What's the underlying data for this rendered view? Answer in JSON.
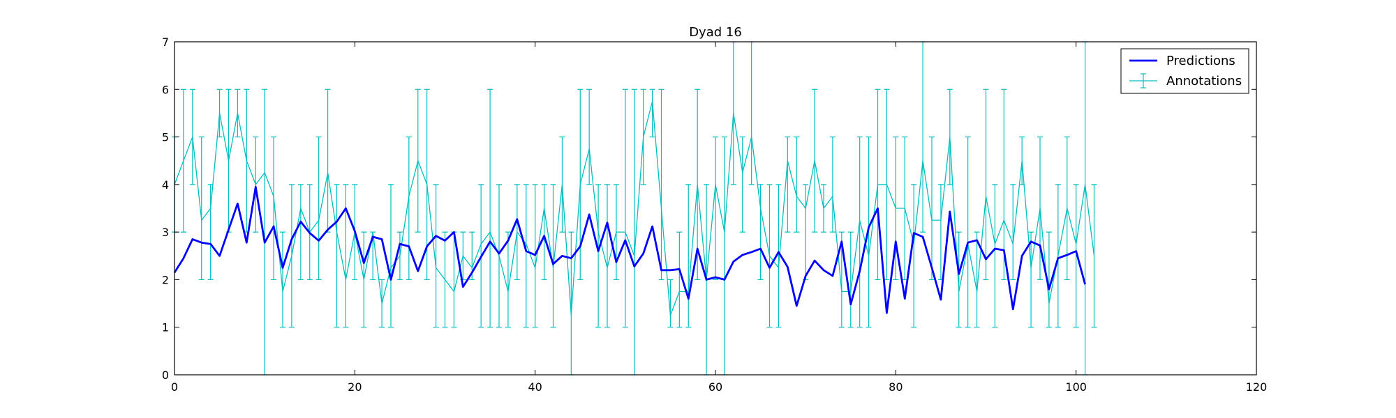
{
  "chart_data": {
    "type": "line",
    "title": "Dyad 16",
    "xlabel": "",
    "ylabel": "",
    "xlim": [
      0,
      120
    ],
    "ylim": [
      0,
      7
    ],
    "xticks": [
      0,
      20,
      40,
      60,
      80,
      100,
      120
    ],
    "yticks": [
      0,
      1,
      2,
      3,
      4,
      5,
      6,
      7
    ],
    "grid": false,
    "legend_position": "top-right",
    "series": [
      {
        "name": "Predictions",
        "color": "#0000ff",
        "style": "line",
        "x": [
          0,
          1,
          2,
          3,
          4,
          5,
          6,
          7,
          8,
          9,
          10,
          11,
          12,
          13,
          14,
          15,
          16,
          17,
          18,
          19,
          20,
          21,
          22,
          23,
          24,
          25,
          26,
          27,
          28,
          29,
          30,
          31,
          32,
          33,
          34,
          35,
          36,
          37,
          38,
          39,
          40,
          41,
          42,
          43,
          44,
          45,
          46,
          47,
          48,
          49,
          50,
          51,
          52,
          53,
          54,
          55,
          56,
          57,
          58,
          59,
          60,
          61,
          62,
          63,
          64,
          65,
          66,
          67,
          68,
          69,
          70,
          71,
          72,
          73,
          74,
          75,
          76,
          77,
          78,
          79,
          80,
          81,
          82,
          83,
          84,
          85,
          86,
          87,
          88,
          89,
          90,
          91,
          92,
          93,
          94,
          95,
          96,
          97,
          98,
          99,
          100,
          101
        ],
        "y": [
          2.15,
          2.45,
          2.85,
          2.78,
          2.75,
          2.5,
          3.05,
          3.6,
          2.78,
          3.95,
          2.78,
          3.12,
          2.25,
          2.85,
          3.22,
          2.98,
          2.82,
          3.05,
          3.22,
          3.5,
          3.02,
          2.35,
          2.9,
          2.85,
          2.0,
          2.75,
          2.7,
          2.18,
          2.7,
          2.92,
          2.82,
          3.0,
          1.85,
          2.15,
          2.48,
          2.8,
          2.55,
          2.82,
          3.27,
          2.6,
          2.52,
          2.92,
          2.33,
          2.5,
          2.45,
          2.7,
          3.37,
          2.6,
          3.2,
          2.37,
          2.83,
          2.28,
          2.55,
          3.12,
          2.2,
          2.2,
          2.22,
          1.6,
          2.65,
          2.0,
          2.05,
          2.0,
          2.38,
          2.52,
          2.58,
          2.65,
          2.25,
          2.58,
          2.27,
          1.45,
          2.08,
          2.4,
          2.2,
          2.08,
          2.8,
          1.48,
          2.18,
          3.1,
          3.5,
          1.3,
          2.8,
          1.6,
          2.98,
          2.9,
          2.25,
          1.58,
          3.43,
          2.12,
          2.78,
          2.83,
          2.43,
          2.65,
          2.62,
          1.38,
          2.5,
          2.8,
          2.72,
          1.8,
          2.45,
          2.52,
          2.6,
          1.9
        ]
      },
      {
        "name": "Annotations",
        "color": "#00bfbf",
        "style": "errorbar",
        "x": [
          0,
          1,
          2,
          3,
          4,
          5,
          6,
          7,
          8,
          9,
          10,
          11,
          12,
          13,
          14,
          15,
          16,
          17,
          18,
          19,
          20,
          21,
          22,
          23,
          24,
          25,
          26,
          27,
          28,
          29,
          30,
          31,
          32,
          33,
          34,
          35,
          36,
          37,
          38,
          39,
          40,
          41,
          42,
          43,
          44,
          45,
          46,
          47,
          48,
          49,
          50,
          51,
          52,
          53,
          54,
          55,
          56,
          57,
          58,
          59,
          60,
          61,
          62,
          63,
          64,
          65,
          66,
          67,
          68,
          69,
          70,
          71,
          72,
          73,
          74,
          75,
          76,
          77,
          78,
          79,
          80,
          81,
          82,
          83,
          84,
          85,
          86,
          87,
          88,
          89,
          90,
          91,
          92,
          93,
          94,
          95,
          96,
          97,
          98,
          99,
          100,
          101,
          102
        ],
        "y": [
          4.0,
          4.5,
          5.0,
          3.25,
          3.5,
          5.5,
          4.5,
          5.5,
          4.5,
          4.0,
          4.25,
          3.75,
          1.75,
          2.5,
          3.5,
          3.0,
          3.25,
          4.25,
          3.0,
          2.0,
          3.0,
          2.0,
          3.0,
          1.5,
          2.25,
          2.5,
          3.75,
          4.5,
          4.0,
          2.25,
          2.0,
          1.75,
          2.5,
          2.25,
          2.75,
          3.0,
          2.5,
          1.75,
          3.0,
          2.75,
          2.25,
          3.5,
          2.25,
          4.0,
          1.25,
          4.0,
          4.75,
          3.0,
          2.25,
          3.0,
          3.0,
          2.5,
          5.0,
          5.75,
          3.5,
          1.25,
          1.75,
          1.75,
          4.0,
          2.0,
          4.0,
          3.0,
          5.5,
          4.25,
          5.0,
          3.5,
          2.5,
          2.25,
          4.5,
          3.75,
          3.5,
          4.5,
          3.5,
          3.75,
          1.75,
          1.75,
          3.25,
          2.5,
          4.0,
          4.0,
          3.5,
          3.5,
          2.75,
          4.5,
          3.25,
          3.25,
          5.0,
          1.75,
          2.75,
          1.75,
          3.75,
          2.75,
          3.25,
          2.75,
          4.5,
          2.25,
          3.5,
          1.5,
          2.5,
          3.5,
          2.75,
          4.0,
          2.5
        ],
        "err_low": [
          3.0,
          3.0,
          4.0,
          2.0,
          2.0,
          5.0,
          3.0,
          5.0,
          3.0,
          3.0,
          0.0,
          2.0,
          1.0,
          1.0,
          2.0,
          2.0,
          2.0,
          3.0,
          1.0,
          1.0,
          2.0,
          1.0,
          2.0,
          1.0,
          1.0,
          2.0,
          2.0,
          3.0,
          2.0,
          1.0,
          1.0,
          1.0,
          2.0,
          2.0,
          1.0,
          1.0,
          1.0,
          1.0,
          2.0,
          1.0,
          1.0,
          2.0,
          1.0,
          3.0,
          0.0,
          2.0,
          4.0,
          1.0,
          1.0,
          2.0,
          1.0,
          0.0,
          4.0,
          5.0,
          2.0,
          1.0,
          1.0,
          1.0,
          2.0,
          0.0,
          2.0,
          0.0,
          4.0,
          3.0,
          4.0,
          2.0,
          1.0,
          1.0,
          3.0,
          3.0,
          2.0,
          3.0,
          3.0,
          3.0,
          1.0,
          1.0,
          1.0,
          1.0,
          2.0,
          2.0,
          2.0,
          2.0,
          1.0,
          3.0,
          2.0,
          2.0,
          4.0,
          1.0,
          1.0,
          1.0,
          2.0,
          1.0,
          2.0,
          2.0,
          4.0,
          1.0,
          2.0,
          1.0,
          1.0,
          2.0,
          1.0,
          0.0,
          1.0
        ],
        "err_high": [
          5.0,
          6.0,
          6.0,
          5.0,
          4.0,
          6.0,
          6.0,
          6.0,
          6.0,
          5.0,
          6.0,
          5.0,
          3.0,
          4.0,
          4.0,
          4.0,
          5.0,
          6.0,
          4.0,
          4.0,
          4.0,
          3.0,
          3.0,
          2.0,
          4.0,
          3.0,
          5.0,
          6.0,
          6.0,
          4.0,
          3.0,
          3.0,
          3.0,
          3.0,
          4.0,
          6.0,
          4.0,
          3.0,
          4.0,
          4.0,
          4.0,
          4.0,
          4.0,
          5.0,
          3.0,
          6.0,
          6.0,
          4.0,
          4.0,
          4.0,
          6.0,
          6.0,
          6.0,
          6.0,
          6.0,
          2.0,
          3.0,
          4.0,
          6.0,
          4.0,
          5.0,
          5.0,
          7.0,
          5.0,
          7.0,
          4.0,
          4.0,
          4.0,
          5.0,
          5.0,
          4.0,
          6.0,
          4.0,
          5.0,
          3.0,
          3.0,
          5.0,
          5.0,
          6.0,
          6.0,
          5.0,
          5.0,
          4.0,
          7.0,
          5.0,
          4.0,
          6.0,
          3.0,
          5.0,
          3.0,
          6.0,
          4.0,
          6.0,
          4.0,
          5.0,
          3.0,
          5.0,
          3.0,
          4.0,
          5.0,
          4.0,
          7.0,
          4.0
        ]
      }
    ]
  }
}
